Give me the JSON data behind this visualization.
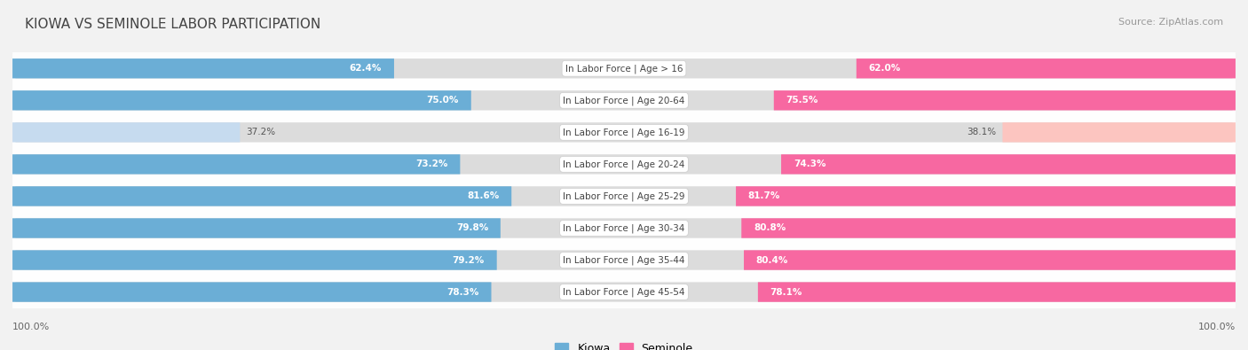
{
  "title": "KIOWA VS SEMINOLE LABOR PARTICIPATION",
  "source": "Source: ZipAtlas.com",
  "categories": [
    "In Labor Force | Age > 16",
    "In Labor Force | Age 20-64",
    "In Labor Force | Age 16-19",
    "In Labor Force | Age 20-24",
    "In Labor Force | Age 25-29",
    "In Labor Force | Age 30-34",
    "In Labor Force | Age 35-44",
    "In Labor Force | Age 45-54"
  ],
  "kiowa": [
    62.4,
    75.0,
    37.2,
    73.2,
    81.6,
    79.8,
    79.2,
    78.3
  ],
  "seminole": [
    62.0,
    75.5,
    38.1,
    74.3,
    81.7,
    80.8,
    80.4,
    78.1
  ],
  "kiowa_color": "#6baed6",
  "kiowa_light_color": "#c6dbef",
  "seminole_color": "#f768a1",
  "seminole_light_color": "#fcc5c0",
  "row_bg_color": "#e8e8e8",
  "bar_bg_color": "#dcdcdc",
  "bg_color": "#f2f2f2",
  "max_val": 100.0,
  "bar_height": 0.62,
  "legend_kiowa": "Kiowa",
  "legend_seminole": "Seminole"
}
